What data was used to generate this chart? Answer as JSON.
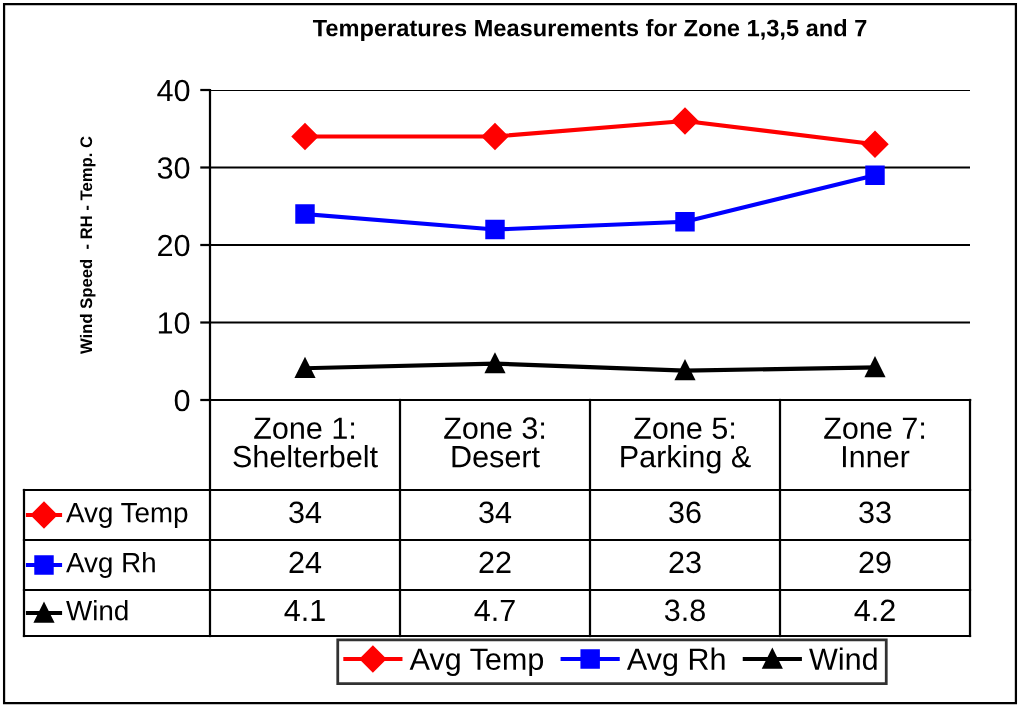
{
  "chart_data": {
    "type": "line",
    "title": "Temperatures Measurements for Zone 1,3,5 and 7",
    "ylabel": "Wind Speed  - RH - Temp. C",
    "categories": [
      "Zone 1:\nShelterbelt",
      "Zone 3:\nDesert",
      "Zone 5:\nParking &",
      "Zone 7:\nInner"
    ],
    "series": [
      {
        "name": "Avg Temp",
        "color": "#ff0000",
        "marker": "diamond",
        "values": [
          34,
          34,
          36,
          33
        ]
      },
      {
        "name": "Avg Rh",
        "color": "#0000ff",
        "marker": "square",
        "values": [
          24,
          22,
          23,
          29
        ]
      },
      {
        "name": "Wind",
        "color": "#000000",
        "marker": "triangle",
        "values": [
          4.1,
          4.7,
          3.8,
          4.2
        ]
      }
    ],
    "ylim": [
      0,
      40
    ],
    "yticks": [
      0,
      10,
      20,
      30,
      40
    ],
    "grid": "y",
    "legend": "bottom",
    "data_labels": true,
    "line_style": "solid"
  }
}
